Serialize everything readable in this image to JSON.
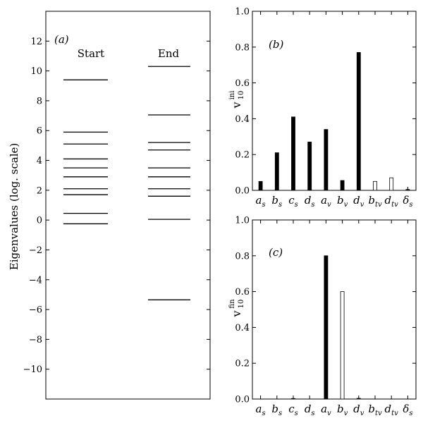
{
  "chart_data": [
    {
      "type": "eigenvalue-levels",
      "panel_label": "(a)",
      "ylabel": "Eigenvalues (log. scale)",
      "ylim": [
        -12,
        14
      ],
      "yticks": [
        -10,
        -8,
        -6,
        -4,
        -2,
        0,
        2,
        4,
        6,
        8,
        10,
        12
      ],
      "columns": [
        {
          "name": "Start",
          "values": [
            9.4,
            5.9,
            5.1,
            4.1,
            3.5,
            2.9,
            2.1,
            1.7,
            0.45,
            -0.25
          ]
        },
        {
          "name": "End",
          "values": [
            10.3,
            7.05,
            5.2,
            4.7,
            3.5,
            2.9,
            2.1,
            1.6,
            0.05,
            -5.35
          ]
        }
      ]
    },
    {
      "type": "bar",
      "panel_label": "(b)",
      "ylabel": "v",
      "ylabel_sub": "10",
      "ylabel_sup": "ini",
      "ylim": [
        0,
        1.0
      ],
      "yticks": [
        0.0,
        0.2,
        0.4,
        0.6,
        0.8,
        1.0
      ],
      "categories": [
        {
          "base": "a",
          "sub": "s"
        },
        {
          "base": "b",
          "sub": "s"
        },
        {
          "base": "c",
          "sub": "s"
        },
        {
          "base": "d",
          "sub": "s"
        },
        {
          "base": "a",
          "sub": "v"
        },
        {
          "base": "b",
          "sub": "v"
        },
        {
          "base": "d",
          "sub": "v"
        },
        {
          "base": "b",
          "sub": "tv"
        },
        {
          "base": "d",
          "sub": "tv"
        },
        {
          "base": "δ",
          "sub": "s"
        }
      ],
      "values": [
        0.05,
        0.21,
        0.41,
        0.27,
        0.34,
        0.055,
        0.77,
        0.05,
        0.07,
        0.005
      ],
      "filled": [
        true,
        true,
        true,
        true,
        true,
        true,
        true,
        false,
        false,
        true
      ]
    },
    {
      "type": "bar",
      "panel_label": "(c)",
      "ylabel": "v",
      "ylabel_sub": "10",
      "ylabel_sup": "fin",
      "ylim": [
        0,
        1.0
      ],
      "yticks": [
        0.0,
        0.2,
        0.4,
        0.6,
        0.8,
        1.0
      ],
      "categories": [
        {
          "base": "a",
          "sub": "s"
        },
        {
          "base": "b",
          "sub": "s"
        },
        {
          "base": "c",
          "sub": "s"
        },
        {
          "base": "d",
          "sub": "s"
        },
        {
          "base": "a",
          "sub": "v"
        },
        {
          "base": "b",
          "sub": "v"
        },
        {
          "base": "d",
          "sub": "v"
        },
        {
          "base": "b",
          "sub": "tv"
        },
        {
          "base": "d",
          "sub": "tv"
        },
        {
          "base": "δ",
          "sub": "s"
        }
      ],
      "values": [
        0.0,
        0.0,
        0.003,
        0.0,
        0.8,
        0.6,
        0.004,
        0.0,
        0.0,
        0.0
      ],
      "filled": [
        true,
        true,
        true,
        true,
        true,
        false,
        true,
        true,
        true,
        true
      ]
    }
  ]
}
